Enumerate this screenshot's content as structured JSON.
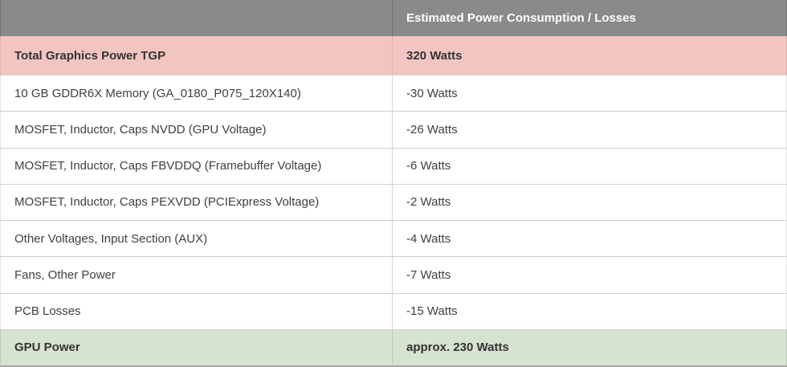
{
  "table": {
    "header": {
      "left_label": "",
      "right_label": "Estimated Power Consumption / Losses"
    },
    "rows": [
      {
        "type": "total",
        "label": "Total Graphics Power TGP",
        "value": "320 Watts"
      },
      {
        "type": "normal",
        "label": "10 GB GDDR6X Memory (GA_0180_P075_120X140)",
        "value": "-30 Watts"
      },
      {
        "type": "normal",
        "label": "MOSFET, Inductor, Caps NVDD (GPU Voltage)",
        "value": "-26 Watts"
      },
      {
        "type": "normal",
        "label": "MOSFET, Inductor, Caps FBVDDQ (Framebuffer Voltage)",
        "value": "-6 Watts"
      },
      {
        "type": "normal",
        "label": "MOSFET, Inductor, Caps PEXVDD (PCIExpress Voltage)",
        "value": "-2 Watts"
      },
      {
        "type": "normal",
        "label": "Other Voltages, Input Section (AUX)",
        "value": "-4 Watts"
      },
      {
        "type": "normal",
        "label": "Fans, Other Power",
        "value": "-7 Watts"
      },
      {
        "type": "normal",
        "label": "PCB Losses",
        "value": "-15 Watts"
      },
      {
        "type": "result",
        "label": "GPU Power",
        "value": "approx. 230 Watts"
      }
    ],
    "colors": {
      "header_bg": "#8a8a8a",
      "header_text": "#ffffff",
      "total_row_bg": "#f3c5c1",
      "result_row_bg": "#d5e3d0",
      "row_text": "#404040",
      "border": "#cfcfcf"
    }
  },
  "chart_data": {
    "type": "table",
    "title": "Estimated Power Consumption / Losses",
    "columns": [
      "",
      "Estimated Power Consumption / Losses"
    ],
    "rows": [
      [
        "Total Graphics Power TGP",
        "320 Watts"
      ],
      [
        "10 GB GDDR6X Memory (GA_0180_P075_120X140)",
        "-30 Watts"
      ],
      [
        "MOSFET, Inductor, Caps NVDD (GPU Voltage)",
        "-26 Watts"
      ],
      [
        "MOSFET, Inductor, Caps FBVDDQ (Framebuffer Voltage)",
        "-6 Watts"
      ],
      [
        "MOSFET, Inductor, Caps PEXVDD (PCIExpress Voltage)",
        "-2 Watts"
      ],
      [
        "Other Voltages, Input Section (AUX)",
        "-4 Watts"
      ],
      [
        "Fans, Other Power",
        "-7 Watts"
      ],
      [
        "PCB Losses",
        "-15 Watts"
      ],
      [
        "GPU Power",
        "approx. 230 Watts"
      ]
    ],
    "values_watts": [
      320,
      -30,
      -26,
      -6,
      -2,
      -4,
      -7,
      -15,
      230
    ]
  }
}
